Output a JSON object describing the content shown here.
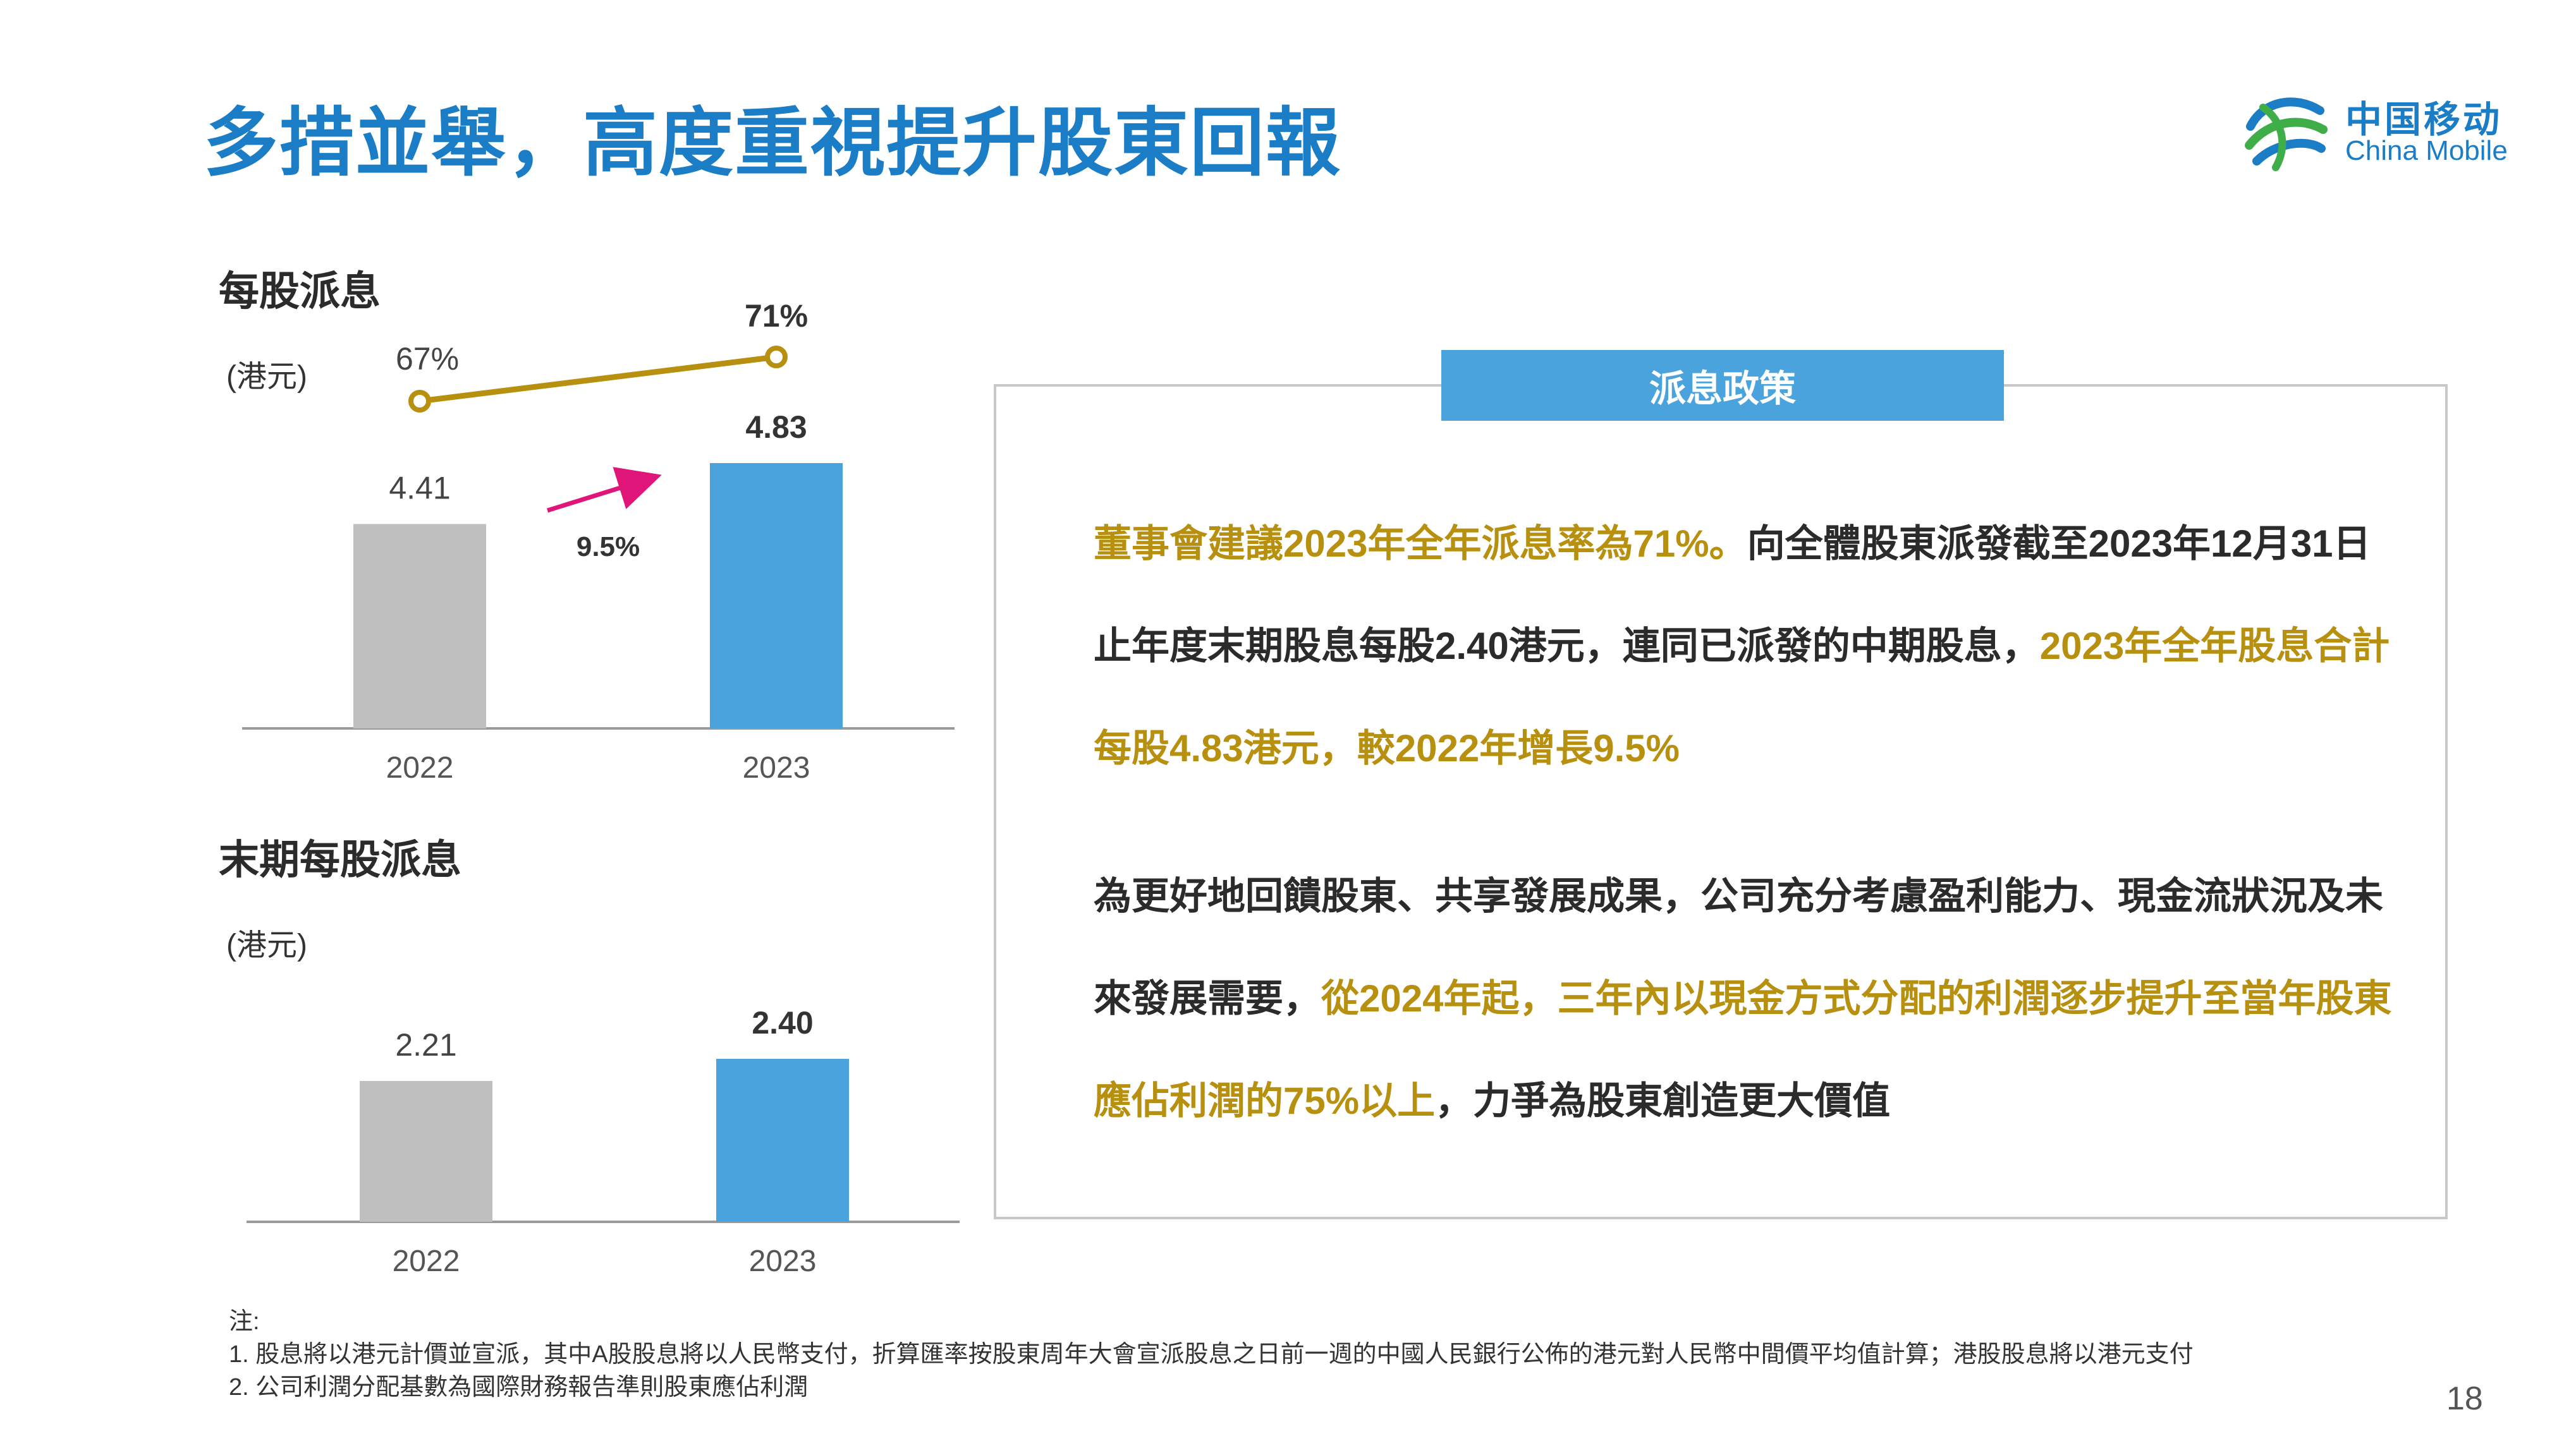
{
  "title": "多措並舉，高度重視提升股東回報",
  "logo": {
    "cn": "中国移动",
    "en": "China Mobile",
    "icon": "china-mobile-logo-icon"
  },
  "chart_data": [
    {
      "type": "bar",
      "title": "每股派息",
      "unit": "(港元)",
      "categories": [
        "2022",
        "2023"
      ],
      "values": [
        4.41,
        4.83
      ],
      "value_labels": [
        "4.41",
        "4.83"
      ],
      "growth_label": "9.5%",
      "line_series": {
        "values": [
          67,
          71
        ],
        "labels": [
          "67%",
          "71%"
        ]
      },
      "colors": {
        "bar_2022": "#bfbfbf",
        "bar_2023": "#4aa3dc",
        "line": "#b8900f",
        "arrow": "#e0157a"
      }
    },
    {
      "type": "bar",
      "title": "末期每股派息",
      "unit": "(港元)",
      "categories": [
        "2022",
        "2023"
      ],
      "values": [
        2.21,
        2.4
      ],
      "value_labels": [
        "2.21",
        "2.40"
      ],
      "colors": {
        "bar_2022": "#bfbfbf",
        "bar_2023": "#4aa3dc"
      }
    }
  ],
  "policy": {
    "header": "派息政策",
    "para1": {
      "s1": "董事會建議2023年全年派息率為71%。",
      "s2": "向全體股東派發截至2023年12月31日止年度末期股息每股2.40港元，連同已派發的中期股息，",
      "s3": "2023年全年股息合計每股4.83港元，較2022年增長9.5%"
    },
    "para2": {
      "s1": "為更好地回饋股東、共享發展成果，公司充分考慮盈利能力、現金流狀況及未來發展需要，",
      "s2": "從2024年起，三年內以現金方式分配的利潤逐步提升至當年股東應佔利潤的75%以上",
      "s3": "，力爭為股東創造更大價值"
    }
  },
  "notes": {
    "label": "注:",
    "n1": "1. 股息將以港元計價並宣派，其中A股股息將以人民幣支付，折算匯率按股東周年大會宣派股息之日前一週的中國人民銀行公佈的港元對人民幣中間價平均值計算；港股股息將以港元支付",
    "n2": "2. 公司利潤分配基數為國際財務報告準則股東應佔利潤"
  },
  "page_number": "18"
}
